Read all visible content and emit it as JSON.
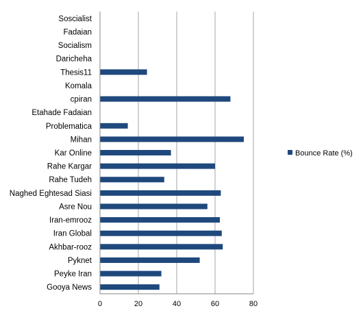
{
  "chart_data": {
    "type": "bar",
    "orientation": "horizontal",
    "categories": [
      "Soscialist",
      "Fadaian",
      "Socialism",
      "Daricheha",
      "Thesis11",
      "Komala",
      "cpiran",
      "Etahade Fadaian",
      "Problematica",
      "Mihan",
      "Kar Online",
      "Rahe Kargar",
      "Rahe Tudeh",
      "Naghed Eghtesad Siasi",
      "Asre Nou",
      "Iran-emrooz",
      "Iran Global",
      "Akhbar-rooz",
      "Pyknet",
      "Peyke Iran",
      "Gooya News"
    ],
    "series": [
      {
        "name": "Bounce Rate (%)",
        "color": "#1f497d",
        "values": [
          0,
          0,
          0,
          0,
          24.5,
          0,
          68,
          0,
          14.5,
          75,
          37,
          60,
          33.5,
          63,
          56,
          62.5,
          63.5,
          64,
          52,
          32,
          31
        ]
      }
    ],
    "xlim": [
      0,
      80
    ],
    "xticks": [
      "0",
      "20",
      "40",
      "60",
      "80"
    ],
    "grid": true,
    "legend_position": "right",
    "title": "",
    "xlabel": "",
    "ylabel": ""
  }
}
